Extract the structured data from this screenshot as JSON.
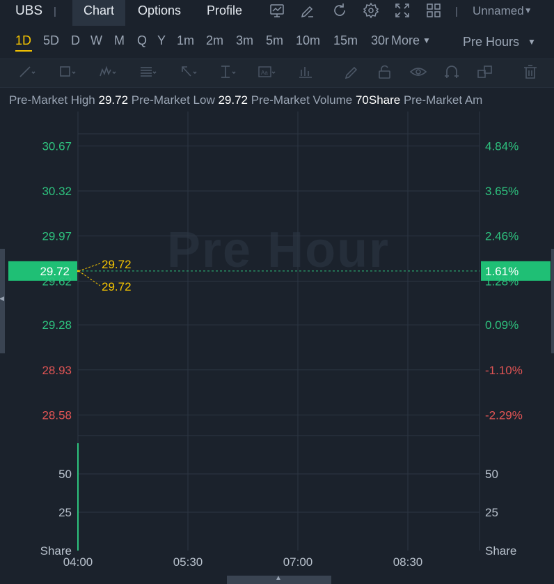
{
  "header": {
    "ticker": "UBS",
    "separator": "|",
    "tabs": [
      "Chart",
      "Options",
      "Profile"
    ],
    "layout_name": "Unnamed",
    "toolbar_icons": [
      "chart-icon",
      "edit-icon",
      "refresh-icon",
      "settings-icon",
      "fullscreen-icon",
      "grid-icon"
    ]
  },
  "periods": [
    "1D",
    "5D",
    "D",
    "W",
    "M",
    "Q",
    "Y",
    "1m",
    "2m",
    "3m",
    "5m",
    "10m",
    "15m",
    "30r",
    "More"
  ],
  "session": "Pre Hours",
  "drawing_tools": [
    "trendline-icon",
    "rectangle-icon",
    "pattern-icon",
    "fibonacci-icon",
    "arrow-icon",
    "text-cursor-icon",
    "text-box-icon",
    "measure-icon",
    "pencil-icon",
    "lock-icon",
    "eye-icon",
    "magnet-icon",
    "clone-icon",
    "trash-icon"
  ],
  "info": {
    "items": [
      {
        "label": "Pre-Market High ",
        "value": "29.72"
      },
      {
        "label": " Pre-Market Low ",
        "value": "29.72"
      },
      {
        "label": " Pre-Market Volume ",
        "value": "70Share"
      },
      {
        "label": " Pre-Market Am",
        "value": ""
      }
    ]
  },
  "watermark": "Pre Hour",
  "colors": {
    "up": "#2ec27e",
    "down": "#e05454",
    "highlight": "#f5c400",
    "current_bg": "#1fbf75",
    "grid": "#2c3643",
    "bg": "#1b222c"
  },
  "chart_data": {
    "type": "line",
    "price_axis": {
      "left_ticks": [
        "30.67",
        "30.32",
        "29.97",
        "29.62",
        "29.28",
        "28.93",
        "28.58"
      ],
      "right_ticks": [
        "4.84%",
        "3.65%",
        "2.46%",
        "1.28%",
        "0.09%",
        "-1.10%",
        "-2.29%"
      ],
      "ylim": [
        28.42,
        30.91
      ]
    },
    "current_price": "29.72",
    "current_change": "1.61%",
    "high_label": "29.72",
    "low_label": "29.72",
    "volume_axis": {
      "ticks": [
        50,
        25
      ],
      "unit": "Share",
      "ylim": [
        0,
        75
      ],
      "bars": [
        {
          "x": "04:00",
          "value": 70
        }
      ]
    },
    "x_ticks": [
      "04:00",
      "05:30",
      "07:00",
      "08:30"
    ],
    "series": [
      {
        "x": "04:00",
        "y": 29.72
      }
    ]
  }
}
